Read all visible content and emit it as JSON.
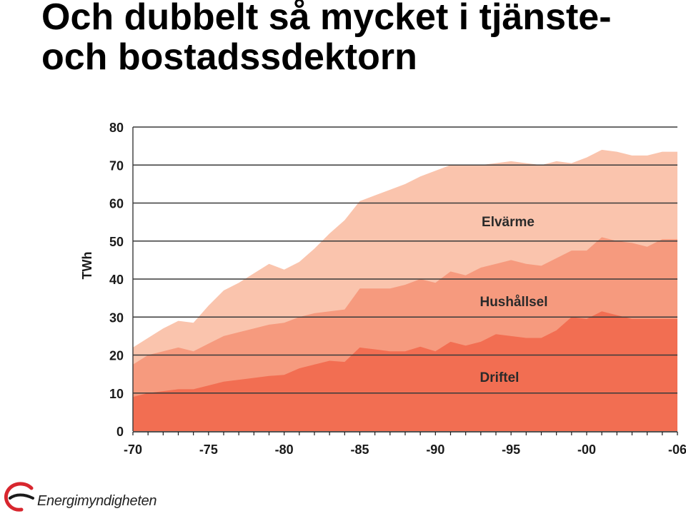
{
  "title": {
    "line1": "Och dubbelt så mycket i tjänste-",
    "line2": "och bostadssdektorn"
  },
  "logo": {
    "text": "Energimyndigheten"
  },
  "colors": {
    "driftel": "#f26e52",
    "hushallsel": "#f69a7e",
    "elvarme": "#fac4ad",
    "grid": "#3a3a3a",
    "logo_red": "#d8262e"
  },
  "chart_data": {
    "type": "area",
    "stacked": true,
    "title": "",
    "xlabel": "",
    "ylabel": "TWh",
    "ylim": [
      0,
      80
    ],
    "yticks": [
      0,
      10,
      20,
      30,
      40,
      50,
      60,
      70,
      80
    ],
    "xlim": [
      1970,
      2006
    ],
    "xticks": [
      1970,
      1975,
      1980,
      1985,
      1990,
      1995,
      2000,
      2006
    ],
    "xtick_labels": [
      "-70",
      "-75",
      "-80",
      "-85",
      "-90",
      "-95",
      "-00",
      "-06"
    ],
    "grid": true,
    "x": [
      1970,
      1971,
      1972,
      1973,
      1974,
      1975,
      1976,
      1977,
      1978,
      1979,
      1980,
      1981,
      1982,
      1983,
      1984,
      1985,
      1986,
      1987,
      1988,
      1989,
      1990,
      1991,
      1992,
      1993,
      1994,
      1995,
      1996,
      1997,
      1998,
      1999,
      2000,
      2001,
      2002,
      2003,
      2004,
      2005,
      2006
    ],
    "series": [
      {
        "name": "Driftel",
        "values": [
          9,
          10,
          10.5,
          11,
          11,
          12,
          13,
          13.5,
          14,
          14.5,
          14.8,
          16.5,
          17.5,
          18.5,
          18.2,
          22,
          21.5,
          21,
          21,
          22.2,
          21,
          23.5,
          22.5,
          23.5,
          25.5,
          25,
          24.5,
          24.5,
          26.5,
          30,
          29.5,
          31.5,
          30.5,
          29.5,
          29.5,
          29.5,
          29.5
        ]
      },
      {
        "name": "Hushållsel",
        "values": [
          17.5,
          20,
          21,
          22,
          21,
          23,
          25,
          26,
          27,
          28,
          28.5,
          30,
          31,
          31.5,
          32,
          37.5,
          37.5,
          37.5,
          38.5,
          40,
          39,
          42,
          41,
          43,
          44,
          45,
          44,
          43.5,
          45.5,
          47.5,
          47.5,
          51,
          50,
          49.5,
          48.5,
          50.5,
          50.5
        ]
      },
      {
        "name": "Elvärme",
        "values": [
          22,
          24.5,
          27,
          29,
          28.5,
          33,
          37,
          39,
          41.5,
          44,
          42.5,
          44.5,
          48,
          52,
          55.5,
          60.5,
          62,
          63.5,
          65,
          67,
          68.5,
          70,
          70,
          70,
          70.5,
          71,
          70.5,
          70,
          71,
          70.5,
          72,
          74,
          73.5,
          72.5,
          72.5,
          73.5,
          73.5
        ]
      }
    ]
  }
}
